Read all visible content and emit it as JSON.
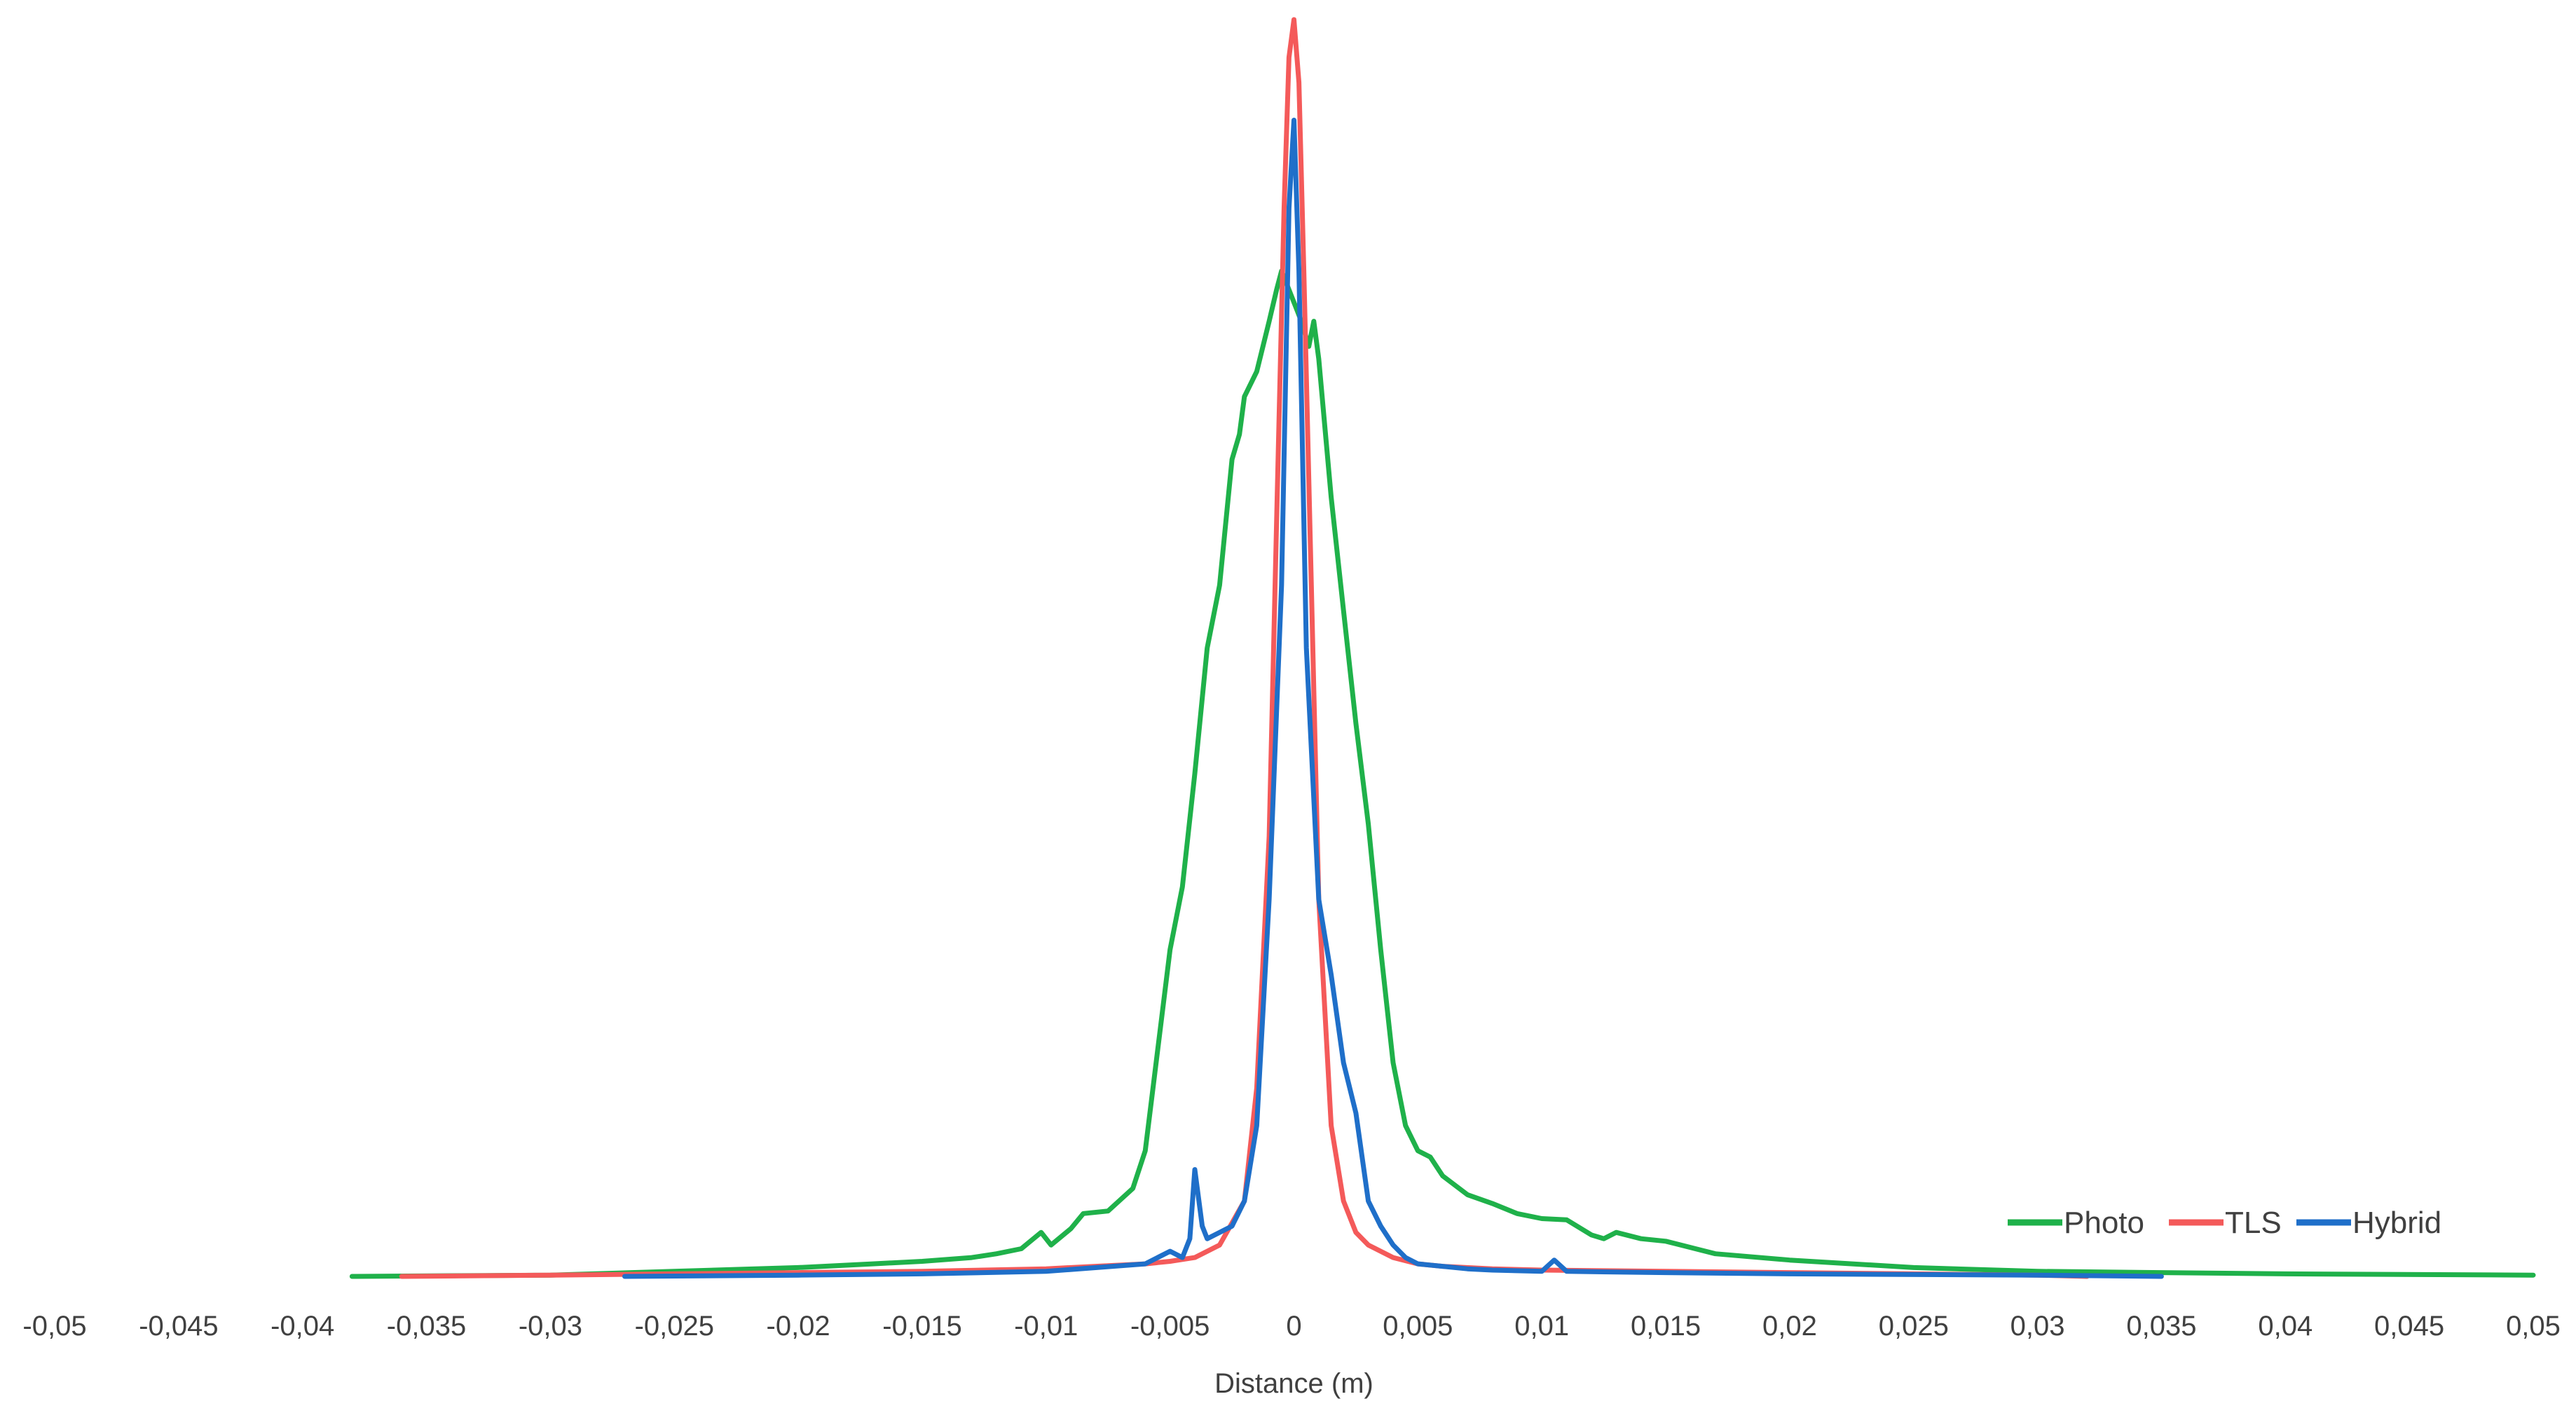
{
  "chart_data": {
    "type": "line",
    "title": "",
    "xlabel": "Distance (m)",
    "ylabel": "",
    "xlim": [
      -0.05,
      0.05
    ],
    "ylim": [
      0,
      1
    ],
    "grid": false,
    "legend_position": "bottom-right",
    "x_ticks": [
      "-0,05",
      "-0,045",
      "-0,04",
      "-0,035",
      "-0,03",
      "-0,025",
      "-0,02",
      "-0,015",
      "-0,01",
      "-0,005",
      "0",
      "0,005",
      "0,01",
      "0,015",
      "0,02",
      "0,025",
      "0,03",
      "0,035",
      "0,04",
      "0,045",
      "0,05"
    ],
    "x_tick_values": [
      -0.05,
      -0.045,
      -0.04,
      -0.035,
      -0.03,
      -0.025,
      -0.02,
      -0.015,
      -0.01,
      -0.005,
      0,
      0.005,
      0.01,
      0.015,
      0.02,
      0.025,
      0.03,
      0.035,
      0.04,
      0.045,
      0.05
    ],
    "series": [
      {
        "name": "Photo",
        "color": "#1fb14a",
        "x": [
          -0.038,
          -0.03,
          -0.025,
          -0.02,
          -0.017,
          -0.015,
          -0.013,
          -0.012,
          -0.011,
          -0.0102,
          -0.0098,
          -0.009,
          -0.0085,
          -0.0075,
          -0.0065,
          -0.006,
          -0.0055,
          -0.005,
          -0.0045,
          -0.004,
          -0.0035,
          -0.003,
          -0.0025,
          -0.0022,
          -0.002,
          -0.0015,
          -0.001,
          -0.0007,
          -0.0005,
          0,
          0.0003,
          0.0006,
          0.0008,
          0.001,
          0.0015,
          0.002,
          0.0025,
          0.003,
          0.0035,
          0.004,
          0.0045,
          0.005,
          0.0055,
          0.006,
          0.007,
          0.008,
          0.009,
          0.01,
          0.011,
          0.012,
          0.0125,
          0.013,
          0.014,
          0.015,
          0.017,
          0.02,
          0.025,
          0.03,
          0.035,
          0.04,
          0.05
        ],
        "y": [
          0.0,
          0.001,
          0.004,
          0.007,
          0.01,
          0.012,
          0.015,
          0.018,
          0.022,
          0.035,
          0.025,
          0.038,
          0.05,
          0.052,
          0.07,
          0.1,
          0.18,
          0.26,
          0.31,
          0.4,
          0.5,
          0.55,
          0.65,
          0.67,
          0.7,
          0.72,
          0.76,
          0.785,
          0.8,
          0.775,
          0.76,
          0.74,
          0.76,
          0.73,
          0.62,
          0.53,
          0.44,
          0.36,
          0.26,
          0.17,
          0.12,
          0.1,
          0.095,
          0.08,
          0.065,
          0.058,
          0.05,
          0.046,
          0.045,
          0.033,
          0.03,
          0.035,
          0.03,
          0.028,
          0.018,
          0.013,
          0.007,
          0.004,
          0.003,
          0.002,
          0.001
        ]
      },
      {
        "name": "TLS",
        "color": "#f45a5a",
        "x": [
          -0.036,
          -0.03,
          -0.025,
          -0.02,
          -0.015,
          -0.01,
          -0.008,
          -0.006,
          -0.005,
          -0.004,
          -0.003,
          -0.002,
          -0.0015,
          -0.001,
          -0.0007,
          -0.0004,
          -0.0002,
          0,
          0.0002,
          0.0004,
          0.0007,
          0.001,
          0.0015,
          0.002,
          0.0025,
          0.003,
          0.004,
          0.005,
          0.006,
          0.008,
          0.01,
          0.015,
          0.02,
          0.025,
          0.03,
          0.032
        ],
        "y": [
          0.0,
          0.001,
          0.002,
          0.003,
          0.004,
          0.006,
          0.008,
          0.01,
          0.012,
          0.015,
          0.025,
          0.06,
          0.15,
          0.35,
          0.6,
          0.85,
          0.97,
          1.0,
          0.95,
          0.8,
          0.55,
          0.3,
          0.12,
          0.06,
          0.035,
          0.025,
          0.015,
          0.01,
          0.008,
          0.006,
          0.005,
          0.004,
          0.003,
          0.002,
          0.001,
          0.0
        ]
      },
      {
        "name": "Hybrid",
        "color": "#1f6fc9",
        "x": [
          -0.027,
          -0.02,
          -0.015,
          -0.01,
          -0.006,
          -0.0055,
          -0.005,
          -0.0045,
          -0.0042,
          -0.004,
          -0.0037,
          -0.0035,
          -0.003,
          -0.0025,
          -0.002,
          -0.0015,
          -0.001,
          -0.0005,
          -0.0002,
          0,
          0.0002,
          0.0005,
          0.001,
          0.0015,
          0.002,
          0.0025,
          0.003,
          0.0035,
          0.004,
          0.0045,
          0.005,
          0.006,
          0.007,
          0.008,
          0.01,
          0.0105,
          0.011,
          0.015,
          0.02,
          0.03,
          0.035
        ],
        "y": [
          0.0,
          0.001,
          0.002,
          0.004,
          0.01,
          0.015,
          0.02,
          0.015,
          0.03,
          0.085,
          0.04,
          0.03,
          0.035,
          0.04,
          0.06,
          0.12,
          0.3,
          0.55,
          0.85,
          0.92,
          0.8,
          0.5,
          0.3,
          0.24,
          0.17,
          0.13,
          0.06,
          0.04,
          0.025,
          0.015,
          0.01,
          0.008,
          0.006,
          0.005,
          0.004,
          0.013,
          0.004,
          0.003,
          0.002,
          0.001,
          0.0
        ]
      }
    ]
  }
}
